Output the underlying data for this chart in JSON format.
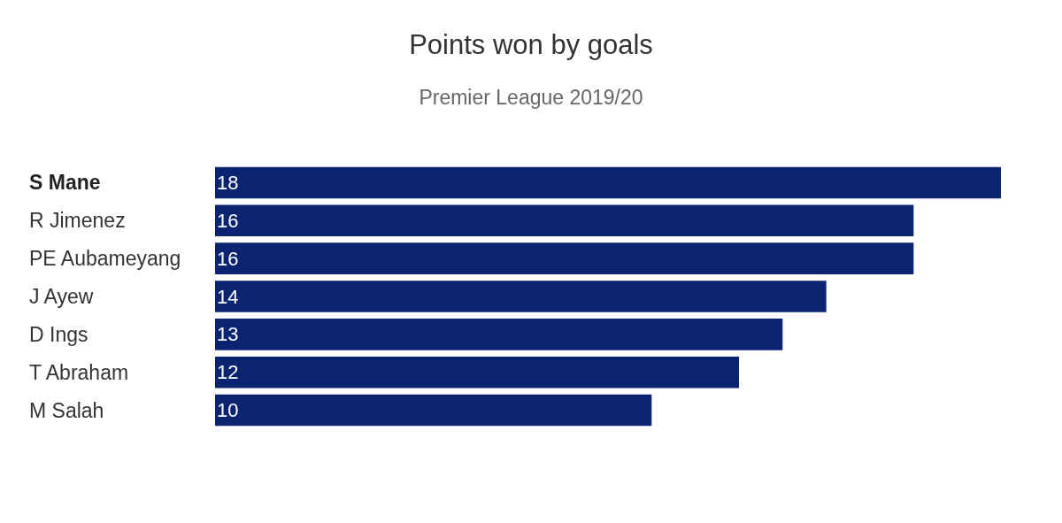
{
  "chart_data": {
    "type": "bar",
    "title": "Points won by goals",
    "subtitle": "Premier League 2019/20",
    "orientation": "horizontal",
    "categories": [
      "S Mane",
      "R Jimenez",
      "PE Aubameyang",
      "J Ayew",
      "D Ings",
      "T Abraham",
      "M Salah"
    ],
    "values": [
      18,
      16,
      16,
      14,
      13,
      12,
      10
    ],
    "color": "#0b2471",
    "data_labels": true
  }
}
